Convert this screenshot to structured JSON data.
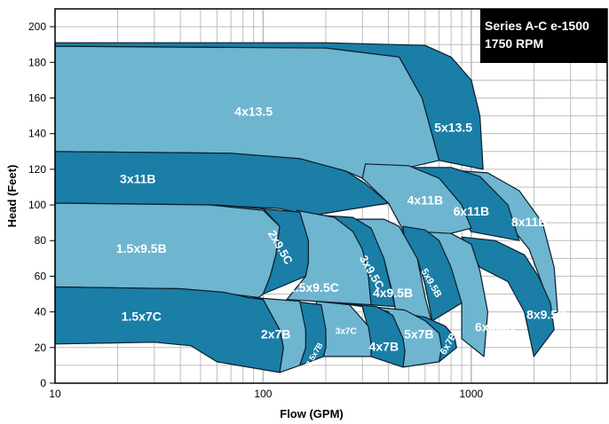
{
  "chart_data": {
    "type": "area",
    "title_lines": [
      "Series A-C e-1500",
      "1750 RPM"
    ],
    "xlabel": "Flow (GPM)",
    "ylabel": "Head (Feet)",
    "x_scale": "log",
    "xlim": [
      10,
      4500
    ],
    "ylim": [
      0,
      210
    ],
    "x_ticks": [
      10,
      100,
      1000
    ],
    "x_tick_labels": [
      "10",
      "100",
      "1000"
    ],
    "y_ticks": [
      0,
      20,
      40,
      60,
      80,
      100,
      120,
      140,
      160,
      180,
      200
    ],
    "y_tick_labels": [
      "0",
      "20",
      "40",
      "60",
      "80",
      "100",
      "120",
      "140",
      "160",
      "180",
      "200"
    ],
    "grid": true,
    "colors": {
      "dark": "#1a7ea7",
      "light": "#6eb5d0",
      "outline": "#0a1e2a",
      "grid": "#bdbdbd",
      "title_bg": "#000000"
    },
    "series": [
      {
        "name": "5x13.5",
        "shade": "dark",
        "label_at": [
          820,
          143
        ],
        "top": [
          [
            10,
            191
          ],
          [
            200,
            191
          ],
          [
            600,
            189.5
          ],
          [
            800,
            183
          ],
          [
            1000,
            170
          ],
          [
            1100,
            150
          ],
          [
            1140,
            120
          ]
        ],
        "bottom": [
          [
            10,
            189
          ],
          [
            200,
            188
          ],
          [
            450,
            183
          ],
          [
            580,
            160
          ],
          [
            700,
            125
          ]
        ]
      },
      {
        "name": "4x13.5",
        "shade": "light",
        "label_at": [
          90,
          152
        ],
        "top": [
          [
            10,
            189
          ],
          [
            200,
            188
          ],
          [
            450,
            183
          ],
          [
            580,
            160
          ],
          [
            700,
            125
          ]
        ],
        "bottom": [
          [
            10,
            130
          ],
          [
            70,
            129
          ],
          [
            150,
            126
          ],
          [
            250,
            119
          ],
          [
            300,
            115
          ]
        ]
      },
      {
        "name": "8x11B",
        "shade": "light",
        "label_at": [
          1900,
          90
        ],
        "top": [
          [
            700,
            120
          ],
          [
            1200,
            118
          ],
          [
            1700,
            108
          ],
          [
            2200,
            90
          ],
          [
            2500,
            65
          ],
          [
            2600,
            40
          ]
        ],
        "bottom": [
          [
            1000,
            104
          ],
          [
            1500,
            90
          ],
          [
            1900,
            75
          ],
          [
            2200,
            55
          ],
          [
            2400,
            38
          ]
        ]
      },
      {
        "name": "6x11B",
        "shade": "dark",
        "label_at": [
          1000,
          96
        ],
        "top": [
          [
            500,
            121
          ],
          [
            800,
            121
          ],
          [
            1100,
            116
          ],
          [
            1500,
            100
          ],
          [
            1700,
            80
          ]
        ],
        "bottom": [
          [
            480,
            110
          ],
          [
            700,
            103
          ],
          [
            900,
            92
          ],
          [
            1000,
            85
          ]
        ]
      },
      {
        "name": "4x11B",
        "shade": "light",
        "label_at": [
          600,
          102
        ],
        "top": [
          [
            310,
            123
          ],
          [
            500,
            122
          ],
          [
            700,
            115
          ],
          [
            900,
            100
          ],
          [
            1000,
            87
          ]
        ],
        "bottom": [
          [
            300,
            115
          ],
          [
            400,
            101
          ],
          [
            460,
            88
          ],
          [
            500,
            78
          ]
        ]
      },
      {
        "name": "3x11B",
        "shade": "dark",
        "label_at": [
          25,
          114
        ],
        "top": [
          [
            10,
            130
          ],
          [
            70,
            129
          ],
          [
            150,
            126
          ],
          [
            250,
            119
          ],
          [
            310,
            112
          ],
          [
            400,
            101
          ]
        ],
        "bottom": [
          [
            10,
            101
          ],
          [
            55,
            100
          ],
          [
            120,
            98
          ],
          [
            170,
            94
          ]
        ]
      },
      {
        "name": "8x9.5B",
        "shade": "dark",
        "label_at": [
          2300,
          38
        ],
        "top": [
          [
            900,
            82
          ],
          [
            1300,
            80
          ],
          [
            1800,
            72
          ],
          [
            2100,
            60
          ],
          [
            2400,
            45
          ],
          [
            2500,
            30
          ]
        ],
        "bottom": [
          [
            1100,
            65
          ],
          [
            1500,
            57
          ],
          [
            1800,
            40
          ],
          [
            2000,
            15
          ]
        ]
      },
      {
        "name": "6x9.5B",
        "shade": "light",
        "label_at": [
          1300,
          31
        ],
        "top": [
          [
            560,
            85
          ],
          [
            800,
            84
          ],
          [
            1000,
            78
          ],
          [
            1100,
            63
          ],
          [
            1200,
            40
          ],
          [
            1150,
            15
          ]
        ],
        "bottom": [
          [
            550,
            77
          ],
          [
            700,
            70
          ],
          [
            800,
            60
          ],
          [
            900,
            45
          ],
          [
            900,
            25
          ]
        ]
      },
      {
        "name": "5x9.5B",
        "shade": "dark",
        "label_at": [
          640,
          56
        ],
        "rotate": 60,
        "size": 11,
        "top": [
          [
            470,
            88
          ],
          [
            600,
            86
          ],
          [
            700,
            80
          ],
          [
            800,
            65
          ],
          [
            900,
            45
          ]
        ],
        "bottom": [
          [
            480,
            78
          ],
          [
            550,
            70
          ],
          [
            600,
            55
          ],
          [
            650,
            35
          ]
        ]
      },
      {
        "name": "4x9.5B",
        "shade": "light",
        "label_at": [
          420,
          50
        ],
        "top": [
          [
            270,
            92
          ],
          [
            380,
            92
          ],
          [
            450,
            88
          ],
          [
            550,
            70
          ],
          [
            600,
            48
          ],
          [
            650,
            33
          ]
        ],
        "bottom": [
          [
            270,
            87
          ],
          [
            330,
            82
          ],
          [
            380,
            70
          ],
          [
            420,
            50
          ],
          [
            440,
            35
          ]
        ]
      },
      {
        "name": "3x9.5C",
        "shade": "dark",
        "label_at": [
          330,
          62
        ],
        "rotate": 60,
        "size": 13,
        "top": [
          [
            200,
            94
          ],
          [
            270,
            93
          ],
          [
            330,
            87
          ],
          [
            380,
            70
          ],
          [
            430,
            43
          ]
        ],
        "bottom": [
          [
            200,
            92
          ],
          [
            260,
            84
          ],
          [
            300,
            73
          ],
          [
            320,
            55
          ],
          [
            330,
            44
          ]
        ]
      },
      {
        "name": "2.5x9.5C",
        "shade": "light",
        "label_at": [
          175,
          53
        ],
        "top": [
          [
            145,
            97
          ],
          [
            220,
            93
          ],
          [
            270,
            85
          ],
          [
            300,
            75
          ],
          [
            320,
            60
          ],
          [
            330,
            44
          ]
        ],
        "bottom": [
          [
            140,
            92
          ],
          [
            160,
            80
          ],
          [
            165,
            68
          ],
          [
            160,
            60
          ],
          [
            130,
            47
          ]
        ]
      },
      {
        "name": "2x9.5C",
        "shade": "dark",
        "label_at": [
          120,
          76
        ],
        "rotate": 60,
        "size": 13,
        "top": [
          [
            60,
            100
          ],
          [
            120,
            97
          ],
          [
            150,
            96
          ],
          [
            165,
            80
          ],
          [
            165,
            68
          ],
          [
            160,
            60
          ]
        ],
        "bottom": [
          [
            100,
            98
          ],
          [
            120,
            88
          ],
          [
            115,
            72
          ],
          [
            108,
            60
          ],
          [
            100,
            50
          ]
        ]
      },
      {
        "name": "1.5x9.5B",
        "shade": "light",
        "label_at": [
          26,
          75
        ],
        "top": [
          [
            10,
            101
          ],
          [
            55,
            100
          ],
          [
            100,
            97
          ],
          [
            120,
            88
          ],
          [
            115,
            72
          ],
          [
            108,
            60
          ],
          [
            100,
            50
          ]
        ],
        "bottom": [
          [
            10,
            54
          ],
          [
            40,
            53
          ],
          [
            60,
            51
          ],
          [
            95,
            48
          ]
        ]
      },
      {
        "name": "6x7B",
        "shade": "dark",
        "label_at": [
          780,
          22
        ],
        "rotate": -60,
        "size": 11,
        "top": [
          [
            420,
            40
          ],
          [
            600,
            37
          ],
          [
            750,
            32
          ],
          [
            830,
            26
          ],
          [
            850,
            20
          ]
        ],
        "bottom": [
          [
            600,
            35
          ],
          [
            700,
            28
          ],
          [
            720,
            20
          ],
          [
            700,
            12
          ]
        ]
      },
      {
        "name": "5x7B",
        "shade": "light",
        "label_at": [
          560,
          27
        ],
        "top": [
          [
            330,
            43
          ],
          [
            480,
            41
          ],
          [
            600,
            35
          ],
          [
            700,
            28
          ],
          [
            720,
            20
          ],
          [
            700,
            12
          ]
        ],
        "bottom": [
          [
            400,
            40
          ],
          [
            450,
            28
          ],
          [
            480,
            18
          ],
          [
            470,
            9
          ]
        ]
      },
      {
        "name": "4x7B",
        "shade": "dark",
        "label_at": [
          380,
          20
        ],
        "top": [
          [
            230,
            45
          ],
          [
            350,
            43
          ],
          [
            420,
            38
          ],
          [
            470,
            25
          ],
          [
            480,
            18
          ],
          [
            470,
            9
          ]
        ],
        "bottom": [
          [
            300,
            43
          ],
          [
            320,
            30
          ],
          [
            330,
            22
          ],
          [
            330,
            15
          ]
        ]
      },
      {
        "name": "3x7C",
        "shade": "light",
        "label_at": [
          250,
          29
        ],
        "size": 10,
        "top": [
          [
            180,
            46
          ],
          [
            260,
            44
          ],
          [
            320,
            32
          ],
          [
            330,
            22
          ],
          [
            330,
            15
          ]
        ],
        "bottom": [
          [
            180,
            42
          ],
          [
            200,
            30
          ],
          [
            200,
            20
          ],
          [
            195,
            15
          ]
        ]
      },
      {
        "name": "2.5x7B",
        "shade": "dark",
        "label_at": [
          177,
          16
        ],
        "rotate": -60,
        "size": 9,
        "top": [
          [
            140,
            46
          ],
          [
            190,
            44
          ],
          [
            200,
            30
          ],
          [
            200,
            20
          ],
          [
            195,
            15
          ]
        ],
        "bottom": [
          [
            140,
            45
          ],
          [
            160,
            30
          ],
          [
            160,
            20
          ],
          [
            150,
            10
          ]
        ]
      },
      {
        "name": "2x7B",
        "shade": "light",
        "label_at": [
          115,
          27
        ],
        "top": [
          [
            90,
            48
          ],
          [
            150,
            46
          ],
          [
            160,
            30
          ],
          [
            160,
            20
          ],
          [
            150,
            10
          ]
        ],
        "bottom": [
          [
            100,
            47
          ],
          [
            120,
            30
          ],
          [
            125,
            20
          ],
          [
            120,
            6
          ]
        ]
      },
      {
        "name": "1.5x7C",
        "shade": "dark",
        "label_at": [
          26,
          37
        ],
        "top": [
          [
            10,
            54
          ],
          [
            40,
            53
          ],
          [
            65,
            51
          ],
          [
            85,
            48
          ],
          [
            100,
            47
          ],
          [
            120,
            30
          ],
          [
            125,
            20
          ],
          [
            120,
            6
          ]
        ],
        "bottom": [
          [
            10,
            22
          ],
          [
            30,
            23
          ],
          [
            45,
            21
          ],
          [
            60,
            12
          ]
        ]
      }
    ]
  }
}
